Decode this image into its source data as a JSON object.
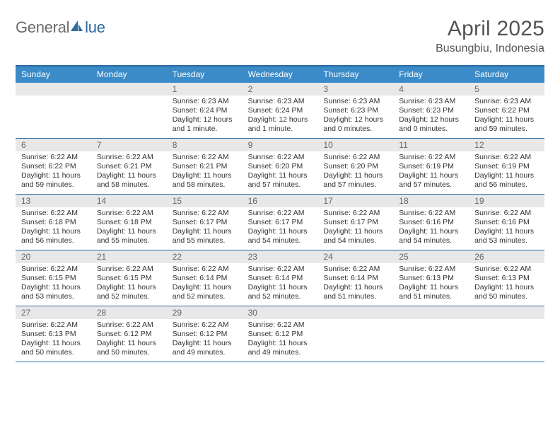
{
  "logo": {
    "text_gray": "General",
    "text_blue": "lue",
    "icon_name": "sail-icon"
  },
  "title": "April 2025",
  "location": "Busungbiu, Indonesia",
  "colors": {
    "header_blue": "#3b8bc8",
    "border_blue": "#2c6aa0",
    "daynum_bg": "#e8e8e8",
    "text_gray": "#6b6b6b",
    "text_dark": "#333333"
  },
  "daynames": [
    "Sunday",
    "Monday",
    "Tuesday",
    "Wednesday",
    "Thursday",
    "Friday",
    "Saturday"
  ],
  "weeks": [
    [
      {
        "n": "",
        "sr": "",
        "ss": "",
        "dl": ""
      },
      {
        "n": "",
        "sr": "",
        "ss": "",
        "dl": ""
      },
      {
        "n": "1",
        "sr": "Sunrise: 6:23 AM",
        "ss": "Sunset: 6:24 PM",
        "dl": "Daylight: 12 hours and 1 minute."
      },
      {
        "n": "2",
        "sr": "Sunrise: 6:23 AM",
        "ss": "Sunset: 6:24 PM",
        "dl": "Daylight: 12 hours and 1 minute."
      },
      {
        "n": "3",
        "sr": "Sunrise: 6:23 AM",
        "ss": "Sunset: 6:23 PM",
        "dl": "Daylight: 12 hours and 0 minutes."
      },
      {
        "n": "4",
        "sr": "Sunrise: 6:23 AM",
        "ss": "Sunset: 6:23 PM",
        "dl": "Daylight: 12 hours and 0 minutes."
      },
      {
        "n": "5",
        "sr": "Sunrise: 6:23 AM",
        "ss": "Sunset: 6:22 PM",
        "dl": "Daylight: 11 hours and 59 minutes."
      }
    ],
    [
      {
        "n": "6",
        "sr": "Sunrise: 6:22 AM",
        "ss": "Sunset: 6:22 PM",
        "dl": "Daylight: 11 hours and 59 minutes."
      },
      {
        "n": "7",
        "sr": "Sunrise: 6:22 AM",
        "ss": "Sunset: 6:21 PM",
        "dl": "Daylight: 11 hours and 58 minutes."
      },
      {
        "n": "8",
        "sr": "Sunrise: 6:22 AM",
        "ss": "Sunset: 6:21 PM",
        "dl": "Daylight: 11 hours and 58 minutes."
      },
      {
        "n": "9",
        "sr": "Sunrise: 6:22 AM",
        "ss": "Sunset: 6:20 PM",
        "dl": "Daylight: 11 hours and 57 minutes."
      },
      {
        "n": "10",
        "sr": "Sunrise: 6:22 AM",
        "ss": "Sunset: 6:20 PM",
        "dl": "Daylight: 11 hours and 57 minutes."
      },
      {
        "n": "11",
        "sr": "Sunrise: 6:22 AM",
        "ss": "Sunset: 6:19 PM",
        "dl": "Daylight: 11 hours and 57 minutes."
      },
      {
        "n": "12",
        "sr": "Sunrise: 6:22 AM",
        "ss": "Sunset: 6:19 PM",
        "dl": "Daylight: 11 hours and 56 minutes."
      }
    ],
    [
      {
        "n": "13",
        "sr": "Sunrise: 6:22 AM",
        "ss": "Sunset: 6:18 PM",
        "dl": "Daylight: 11 hours and 56 minutes."
      },
      {
        "n": "14",
        "sr": "Sunrise: 6:22 AM",
        "ss": "Sunset: 6:18 PM",
        "dl": "Daylight: 11 hours and 55 minutes."
      },
      {
        "n": "15",
        "sr": "Sunrise: 6:22 AM",
        "ss": "Sunset: 6:17 PM",
        "dl": "Daylight: 11 hours and 55 minutes."
      },
      {
        "n": "16",
        "sr": "Sunrise: 6:22 AM",
        "ss": "Sunset: 6:17 PM",
        "dl": "Daylight: 11 hours and 54 minutes."
      },
      {
        "n": "17",
        "sr": "Sunrise: 6:22 AM",
        "ss": "Sunset: 6:17 PM",
        "dl": "Daylight: 11 hours and 54 minutes."
      },
      {
        "n": "18",
        "sr": "Sunrise: 6:22 AM",
        "ss": "Sunset: 6:16 PM",
        "dl": "Daylight: 11 hours and 54 minutes."
      },
      {
        "n": "19",
        "sr": "Sunrise: 6:22 AM",
        "ss": "Sunset: 6:16 PM",
        "dl": "Daylight: 11 hours and 53 minutes."
      }
    ],
    [
      {
        "n": "20",
        "sr": "Sunrise: 6:22 AM",
        "ss": "Sunset: 6:15 PM",
        "dl": "Daylight: 11 hours and 53 minutes."
      },
      {
        "n": "21",
        "sr": "Sunrise: 6:22 AM",
        "ss": "Sunset: 6:15 PM",
        "dl": "Daylight: 11 hours and 52 minutes."
      },
      {
        "n": "22",
        "sr": "Sunrise: 6:22 AM",
        "ss": "Sunset: 6:14 PM",
        "dl": "Daylight: 11 hours and 52 minutes."
      },
      {
        "n": "23",
        "sr": "Sunrise: 6:22 AM",
        "ss": "Sunset: 6:14 PM",
        "dl": "Daylight: 11 hours and 52 minutes."
      },
      {
        "n": "24",
        "sr": "Sunrise: 6:22 AM",
        "ss": "Sunset: 6:14 PM",
        "dl": "Daylight: 11 hours and 51 minutes."
      },
      {
        "n": "25",
        "sr": "Sunrise: 6:22 AM",
        "ss": "Sunset: 6:13 PM",
        "dl": "Daylight: 11 hours and 51 minutes."
      },
      {
        "n": "26",
        "sr": "Sunrise: 6:22 AM",
        "ss": "Sunset: 6:13 PM",
        "dl": "Daylight: 11 hours and 50 minutes."
      }
    ],
    [
      {
        "n": "27",
        "sr": "Sunrise: 6:22 AM",
        "ss": "Sunset: 6:13 PM",
        "dl": "Daylight: 11 hours and 50 minutes."
      },
      {
        "n": "28",
        "sr": "Sunrise: 6:22 AM",
        "ss": "Sunset: 6:12 PM",
        "dl": "Daylight: 11 hours and 50 minutes."
      },
      {
        "n": "29",
        "sr": "Sunrise: 6:22 AM",
        "ss": "Sunset: 6:12 PM",
        "dl": "Daylight: 11 hours and 49 minutes."
      },
      {
        "n": "30",
        "sr": "Sunrise: 6:22 AM",
        "ss": "Sunset: 6:12 PM",
        "dl": "Daylight: 11 hours and 49 minutes."
      },
      {
        "n": "",
        "sr": "",
        "ss": "",
        "dl": ""
      },
      {
        "n": "",
        "sr": "",
        "ss": "",
        "dl": ""
      },
      {
        "n": "",
        "sr": "",
        "ss": "",
        "dl": ""
      }
    ]
  ]
}
